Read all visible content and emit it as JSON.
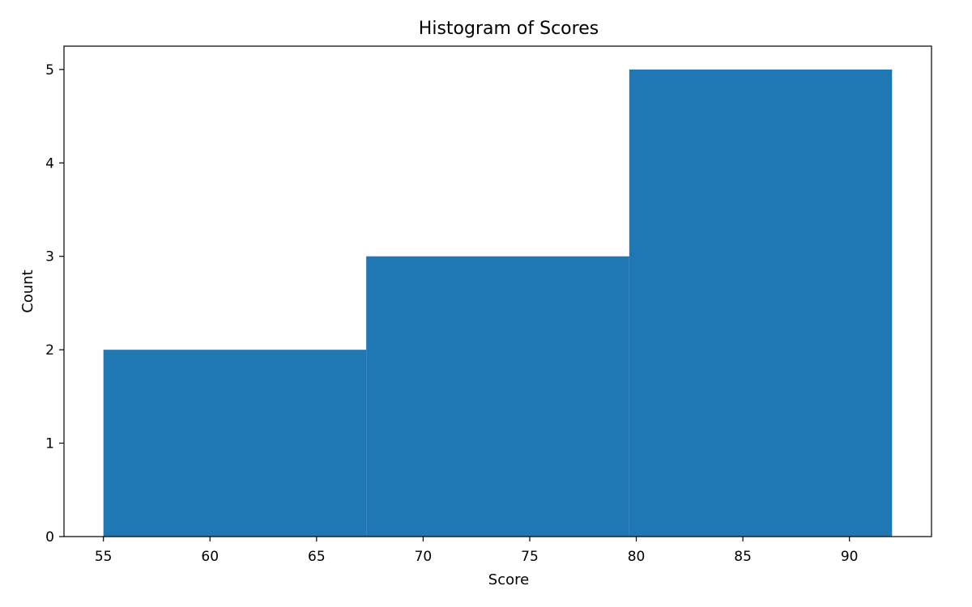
{
  "chart_data": {
    "type": "bar",
    "title": "Histogram of Scores",
    "xlabel": "Score",
    "ylabel": "Count",
    "bins": [
      {
        "start": 55,
        "end": 67.33,
        "count": 2
      },
      {
        "start": 67.33,
        "end": 79.67,
        "count": 3
      },
      {
        "start": 79.67,
        "end": 92,
        "count": 5
      }
    ],
    "xlim": [
      53.15,
      93.85
    ],
    "ylim": [
      0,
      5.25
    ],
    "xticks": [
      55,
      60,
      65,
      70,
      75,
      80,
      85,
      90
    ],
    "yticks": [
      0,
      1,
      2,
      3,
      4,
      5
    ],
    "bar_color": "#1f77b4",
    "grid": false
  }
}
